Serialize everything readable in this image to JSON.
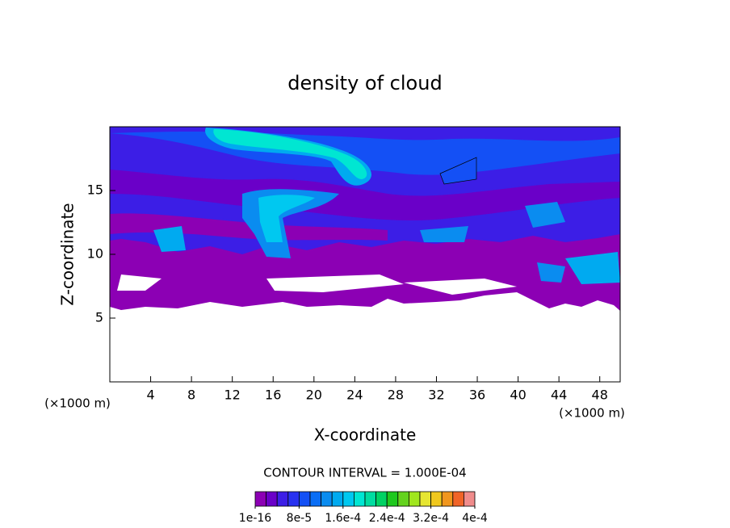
{
  "chart_data": {
    "type": "contour",
    "title": "density of cloud",
    "x_label": "X-coordinate",
    "y_label": "Z-coordinate",
    "x_unit_left": "(×1000 m)",
    "x_unit_right": "(×1000 m)",
    "xlim": [
      0,
      50
    ],
    "ylim": [
      0,
      20
    ],
    "xticks": [
      4,
      8,
      12,
      16,
      20,
      24,
      28,
      32,
      36,
      40,
      44,
      48
    ],
    "yticks": [
      5,
      10,
      15
    ],
    "contour_interval_text": "CONTOUR INTERVAL = 1.000E-04",
    "colorbar": {
      "clim": [
        1e-16,
        0.0004
      ],
      "colors": [
        "#8c00b4",
        "#6a00c8",
        "#3c1ee6",
        "#2832f0",
        "#1450f5",
        "#0a6ef5",
        "#0a8cf0",
        "#00aaf0",
        "#00c8f0",
        "#00e6d2",
        "#00dca0",
        "#00d264",
        "#1ec81e",
        "#64d21e",
        "#a0e61e",
        "#e6e632",
        "#f0c81e",
        "#f0961e",
        "#f06428",
        "#f08c8c"
      ],
      "ticks": [
        {
          "value": 1e-16,
          "label": "1e-16"
        },
        {
          "value": 8e-05,
          "label": "8e-5"
        },
        {
          "value": 0.00016,
          "label": "1.6e-4"
        },
        {
          "value": 0.00024,
          "label": "2.4e-4"
        },
        {
          "value": 0.00032,
          "label": "3.2e-4"
        },
        {
          "value": 0.0004,
          "label": "4e-4"
        }
      ]
    }
  }
}
